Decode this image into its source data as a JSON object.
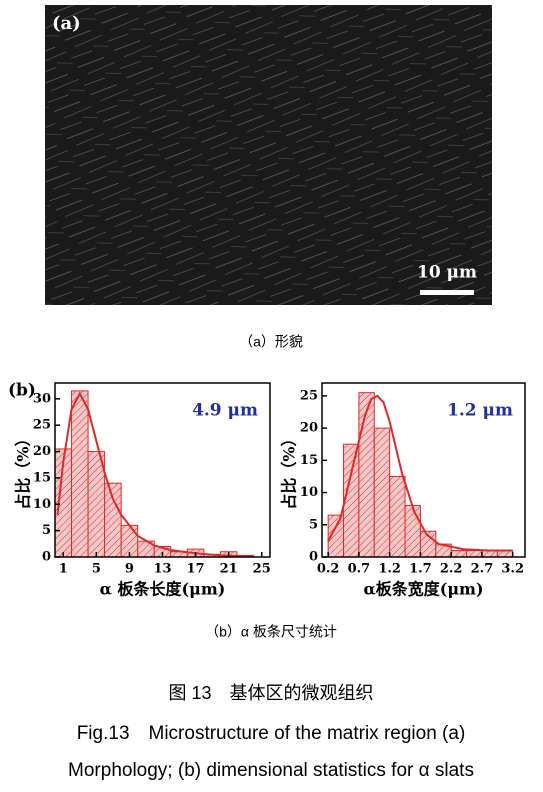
{
  "figure": {
    "panel_a_label": "(a)",
    "scale_bar": "10 μm",
    "caption_a": "（a）形貌",
    "caption_b": "（b）α 板条尺寸统计",
    "title_cn": "图 13　基体区的微观组织",
    "title_en_1": "Fig.13　Microstructure of the matrix region (a)",
    "title_en_2": "Morphology; (b) dimensional statistics for α slats"
  },
  "chart_data": [
    {
      "type": "histogram",
      "panel_label": "(b)",
      "annotation": "4.9 μm",
      "xlabel": "α 板条长度(μm)",
      "ylabel": "占比（%）",
      "bins": [
        0,
        2,
        4,
        6,
        8,
        10,
        12,
        14,
        16,
        18,
        20,
        22,
        24
      ],
      "values": [
        20.5,
        31.5,
        20,
        14,
        6,
        3,
        2,
        1,
        1.5,
        0.5,
        1,
        0.3
      ],
      "fit_x": [
        0.3,
        1,
        2,
        3,
        4,
        5,
        6,
        7,
        8,
        10,
        12,
        14,
        17,
        20,
        24
      ],
      "fit_y": [
        8,
        18,
        28,
        31,
        28,
        22,
        16,
        11,
        8,
        4,
        2.2,
        1.3,
        0.7,
        0.3,
        0.1
      ],
      "color": "#e02828",
      "xlim": [
        0,
        26
      ],
      "ylim": [
        0,
        33
      ],
      "xticks": [
        1,
        5,
        9,
        13,
        17,
        21,
        25
      ],
      "yticks": [
        0,
        5,
        10,
        15,
        20,
        25,
        30
      ]
    },
    {
      "type": "histogram",
      "annotation": "1.2 μm",
      "xlabel": "α板条宽度(μm)",
      "ylabel": "占比（%）",
      "bins": [
        0.2,
        0.45,
        0.7,
        0.95,
        1.2,
        1.45,
        1.7,
        1.95,
        2.2,
        2.45,
        2.7,
        2.95,
        3.2
      ],
      "values": [
        6.5,
        17.5,
        25.5,
        20,
        12.5,
        8,
        4,
        2,
        1,
        1,
        1,
        1
      ],
      "fit_x": [
        0.2,
        0.4,
        0.6,
        0.8,
        0.9,
        1.0,
        1.1,
        1.2,
        1.4,
        1.6,
        1.8,
        2.0,
        2.4,
        2.8,
        3.2
      ],
      "fit_y": [
        2.5,
        6,
        14,
        22,
        24.5,
        25,
        24,
        21,
        13,
        7,
        3.5,
        2,
        1.2,
        1,
        1
      ],
      "color": "#e02828",
      "xlim": [
        0.1,
        3.4
      ],
      "ylim": [
        0,
        27
      ],
      "xticks": [
        0.2,
        0.7,
        1.2,
        1.7,
        2.2,
        2.7,
        3.2
      ],
      "yticks": [
        0,
        5,
        10,
        15,
        20,
        25
      ]
    }
  ]
}
